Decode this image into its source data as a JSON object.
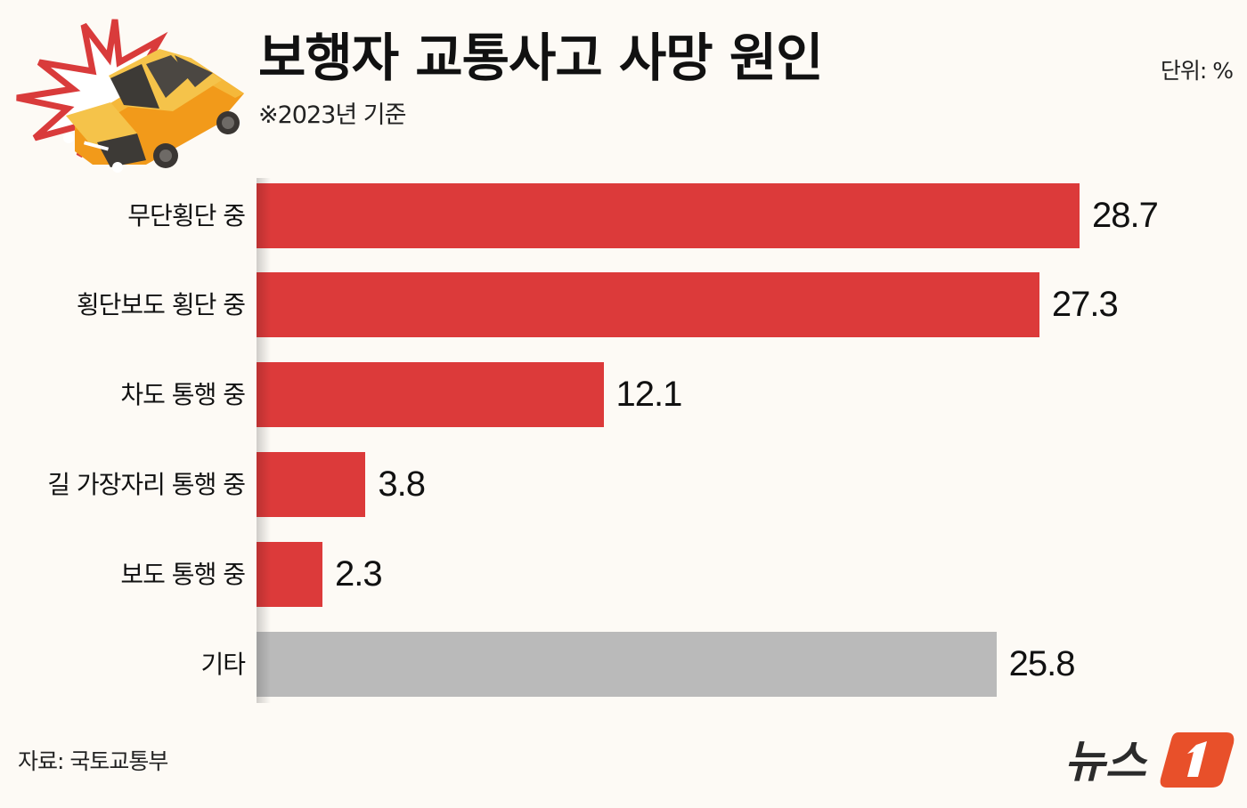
{
  "header": {
    "title": "보행자 교통사고 사망 원인",
    "subtitle": "※2023년 기준",
    "unit": "단위: %"
  },
  "footer": {
    "source": "자료: 국토교통부",
    "logo_text": "뉴스1"
  },
  "colors": {
    "primary_bar": "#dc3a3a",
    "other_bar": "#bababa",
    "background": "#fdfaf5",
    "logo_accent": "#e8502a"
  },
  "chart_data": {
    "type": "bar",
    "orientation": "horizontal",
    "title": "보행자 교통사고 사망 원인",
    "subtitle": "※2023년 기준",
    "unit": "%",
    "xlabel": "",
    "ylabel": "",
    "grid": false,
    "legend": null,
    "categories": [
      "무단횡단 중",
      "횡단보도 횡단 중",
      "차도 통행 중",
      "길 가장자리 통행 중",
      "보도 통행 중",
      "기타"
    ],
    "values": [
      28.7,
      27.3,
      12.1,
      3.8,
      2.3,
      25.8
    ],
    "value_labels": [
      "28.7",
      "27.3",
      "12.1",
      "3.8",
      "2.3",
      "25.8"
    ],
    "bar_colors": [
      "#dc3a3a",
      "#dc3a3a",
      "#dc3a3a",
      "#dc3a3a",
      "#dc3a3a",
      "#bababa"
    ],
    "source": "자료: 국토교통부"
  }
}
